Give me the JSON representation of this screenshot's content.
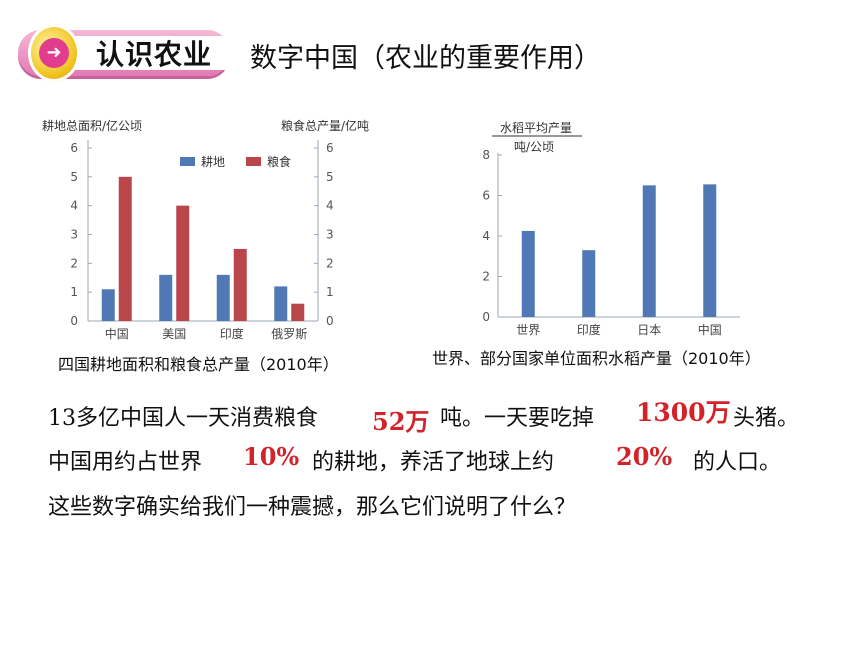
{
  "header": {
    "badge_label": "认识农业",
    "badge_icon": "arrow-right-icon",
    "title": "数字中国（农业的重要作用）"
  },
  "chart_data": [
    {
      "type": "bar",
      "categories": [
        "中国",
        "美国",
        "印度",
        "俄罗斯"
      ],
      "series": [
        {
          "name": "耕地",
          "values": [
            1.1,
            1.6,
            1.6,
            1.2
          ],
          "color": "#4f78b5"
        },
        {
          "name": "粮食",
          "values": [
            5.0,
            4.0,
            2.5,
            0.6
          ],
          "color": "#b9464b"
        }
      ],
      "ylabel_left": "耕地总面积/亿公顷",
      "ylabel_right": "粮食总产量/亿吨",
      "ylim": [
        0,
        6
      ],
      "yticks": [
        "0",
        "1",
        "2",
        "3",
        "4",
        "5",
        "6"
      ],
      "legend": "top-right",
      "grid": false,
      "caption": "四国耕地面积和粮食总产量（2010年）"
    },
    {
      "type": "bar",
      "categories": [
        "世界",
        "印度",
        "日本",
        "中国"
      ],
      "values": [
        4.25,
        3.3,
        6.5,
        6.55
      ],
      "color": "#4f78b5",
      "ylabel_line1": "水稻平均产量",
      "ylabel_line2": "吨/公顷",
      "ylim": [
        0,
        8
      ],
      "yticks": [
        "0",
        "2",
        "4",
        "6",
        "8"
      ],
      "grid": false,
      "caption": "世界、部分国家单位面积水稻产量（2010年）"
    }
  ],
  "text": {
    "line1_a": "13多亿中国人一天消费粮食",
    "line1_v1": "52万",
    "line1_b": "吨。一天要吃掉",
    "line1_v2": "1300万",
    "line1_c": "头猪。",
    "line2_a": "中国用约占世界",
    "line2_v1": "10%",
    "line2_b": "的耕地，养活了地球上约",
    "line2_v2": "20%",
    "line2_c": "的人口。",
    "line3": "这些数字确实给我们一种震撼，那么它们说明了什么？"
  },
  "colors": {
    "highlight": "#d2232a",
    "bar_blue": "#4f78b5",
    "bar_red": "#b9464b",
    "badge_pink": "#e27ab4",
    "badge_gold": "#f0c21e"
  }
}
